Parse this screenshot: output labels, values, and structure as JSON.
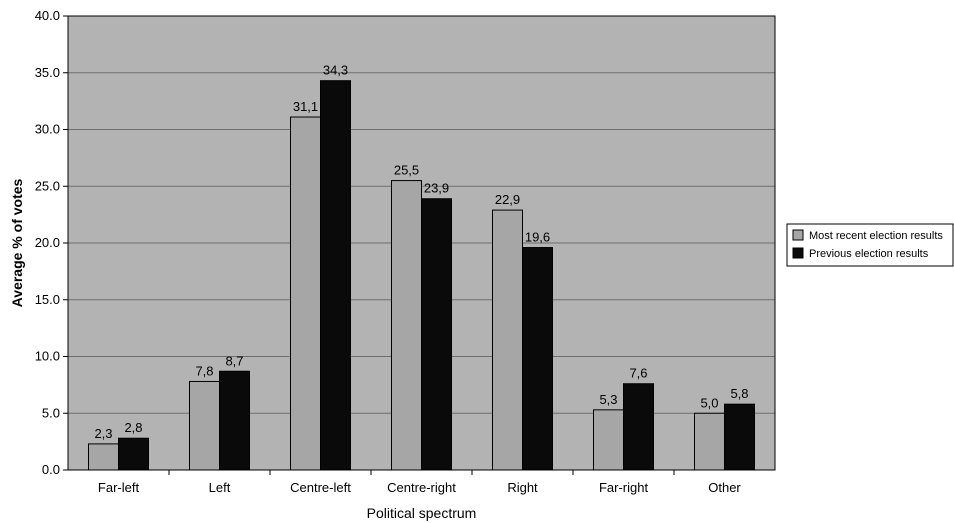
{
  "chart_data": {
    "type": "bar",
    "title": "",
    "xlabel": "Political spectrum",
    "ylabel": "Average % of votes",
    "ylim": [
      0,
      40
    ],
    "ytick_step": 5,
    "ytick_labels": [
      "0.0",
      "5.0",
      "10.0",
      "15.0",
      "20.0",
      "25.0",
      "30.0",
      "35.0",
      "40.0"
    ],
    "grid": true,
    "legend_position": "right",
    "categories": [
      "Far-left",
      "Left",
      "Centre-left",
      "Centre-right",
      "Right",
      "Far-right",
      "Other"
    ],
    "series": [
      {
        "name": "Most recent election results",
        "color": "#a6a6a6",
        "values": [
          2.3,
          7.8,
          31.1,
          25.5,
          22.9,
          5.3,
          5.0
        ],
        "labels": [
          "2,3",
          "7,8",
          "31,1",
          "25,5",
          "22,9",
          "5,3",
          "5,0"
        ]
      },
      {
        "name": "Previous election results",
        "color": "#0a0a0a",
        "values": [
          2.8,
          8.7,
          34.3,
          23.9,
          19.6,
          7.6,
          5.8
        ],
        "labels": [
          "2,8",
          "8,7",
          "34,3",
          "23,9",
          "19,6",
          "7,6",
          "5,8"
        ]
      }
    ],
    "colors": {
      "plot_background": "#b3b3b3",
      "gridline": "#6e6e6e",
      "page_background": "#ffffff"
    }
  }
}
